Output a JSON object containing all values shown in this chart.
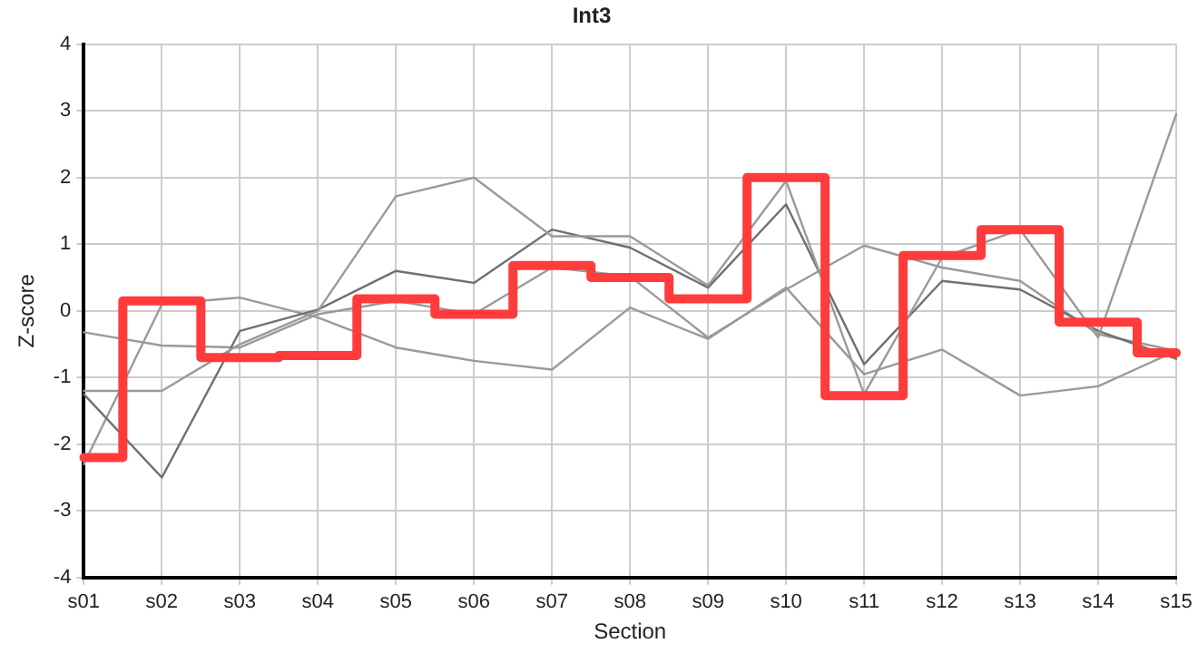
{
  "chart_data": {
    "type": "line",
    "title": "Int3",
    "xlabel": "Section",
    "ylabel": "Z-score",
    "categories": [
      "s01",
      "s02",
      "s03",
      "s04",
      "s05",
      "s06",
      "s07",
      "s08",
      "s09",
      "s10",
      "s11",
      "s12",
      "s13",
      "s14",
      "s15"
    ],
    "series": [
      {
        "color": "#9a9a9a",
        "values": [
          -1.2,
          -1.2,
          -0.5,
          0,
          1.72,
          2.0,
          1.12,
          1.12,
          0.38,
          1.95,
          -1.25,
          0.8,
          1.22,
          -0.4,
          2.95
        ]
      },
      {
        "color": "#707070",
        "values": [
          -1.25,
          -2.5,
          -0.3,
          0.02,
          0.6,
          0.42,
          1.22,
          0.95,
          0.35,
          1.6,
          -0.8,
          0.45,
          0.32,
          -0.3,
          -0.72
        ]
      },
      {
        "color": "#9a9a9a",
        "values": [
          -0.32,
          -0.52,
          -0.55,
          -0.05,
          0.15,
          -0.05,
          0.65,
          0.52,
          -0.4,
          0.32,
          0.98,
          0.65,
          0.45,
          -0.35,
          -0.6
        ]
      },
      {
        "color": "#9a9a9a",
        "values": [
          -2.3,
          0.1,
          0.2,
          -0.1,
          -0.55,
          -0.75,
          -0.88,
          0.05,
          -0.42,
          0.35,
          -0.95,
          -0.58,
          -1.27,
          -1.13,
          -0.6
        ]
      },
      {
        "type": "step",
        "color": "#ff3b3b",
        "values": [
          -2.2,
          0.15,
          -0.7,
          -0.67,
          0.18,
          -0.05,
          0.68,
          0.5,
          0.18,
          2.0,
          -1.27,
          0.83,
          1.22,
          -0.17,
          -0.63
        ]
      }
    ],
    "ylim": [
      -4,
      4
    ],
    "yticks": [
      -4,
      -3,
      -2,
      -1,
      0,
      1,
      2,
      3,
      4
    ],
    "grid": true,
    "legend": false,
    "marker": "none",
    "line_style": "solid"
  }
}
